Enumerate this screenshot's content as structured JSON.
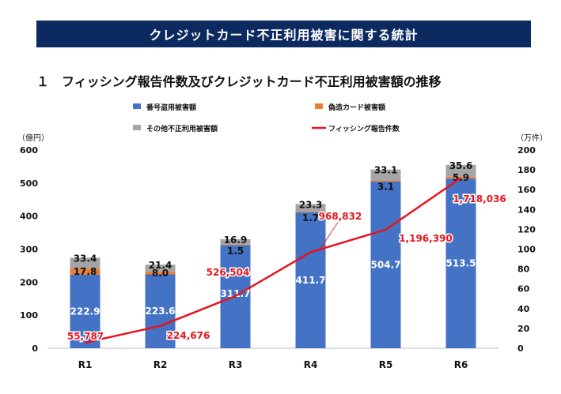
{
  "header": {
    "banner_title": "クレジットカード不正利用被害に関する統計",
    "section_title": "１　フィッシング報告件数及びクレジットカード不正利用被害額の推移"
  },
  "chart_data": {
    "type": "bar",
    "stacked": true,
    "categories": [
      "R1",
      "R2",
      "R3",
      "R4",
      "R5",
      "R6"
    ],
    "series": [
      {
        "name": "番号盗用被害額",
        "color": "#4472c4",
        "values": [
          222.9,
          223.6,
          311.7,
          411.7,
          504.7,
          513.5
        ],
        "labels": [
          "222.9",
          "223.6",
          "311.7",
          "411.7",
          "504.7",
          "513.5"
        ]
      },
      {
        "name": "偽造カード被害額",
        "color": "#ed7d31",
        "values": [
          17.8,
          8.0,
          1.5,
          1.7,
          3.1,
          5.9
        ],
        "labels": [
          "17.8",
          "8.0",
          "1.5",
          "1.7",
          "3.1",
          "5.9"
        ]
      },
      {
        "name": "その他不正利用被害額",
        "color": "#a5a5a5",
        "values": [
          33.4,
          21.4,
          16.9,
          23.3,
          33.1,
          35.6
        ],
        "labels": [
          "33.4",
          "21.4",
          "16.9",
          "23.3",
          "33.1",
          "35.6"
        ]
      }
    ],
    "line_series": {
      "name": "フィッシング報告件数",
      "color": "#e8141c",
      "values": [
        55787,
        224676,
        526504,
        968832,
        1196390,
        1718036
      ],
      "labels": [
        "55,787",
        "224,676",
        "526,504",
        "968,832",
        "1,196,390",
        "1,718,036"
      ]
    },
    "y_left": {
      "unit": "（億円）",
      "ticks": [
        "0",
        "100",
        "200",
        "300",
        "400",
        "500",
        "600"
      ],
      "ylim": [
        0,
        600
      ]
    },
    "y_right": {
      "unit": "（万件）",
      "ticks": [
        "0",
        "20",
        "40",
        "60",
        "80",
        "100",
        "120",
        "140",
        "160",
        "180",
        "200"
      ],
      "ylim": [
        0,
        200
      ]
    },
    "legend": [
      "番号盗用被害額",
      "偽造カード被害額",
      "その他不正利用被害額",
      "フィッシング報告件数"
    ]
  }
}
